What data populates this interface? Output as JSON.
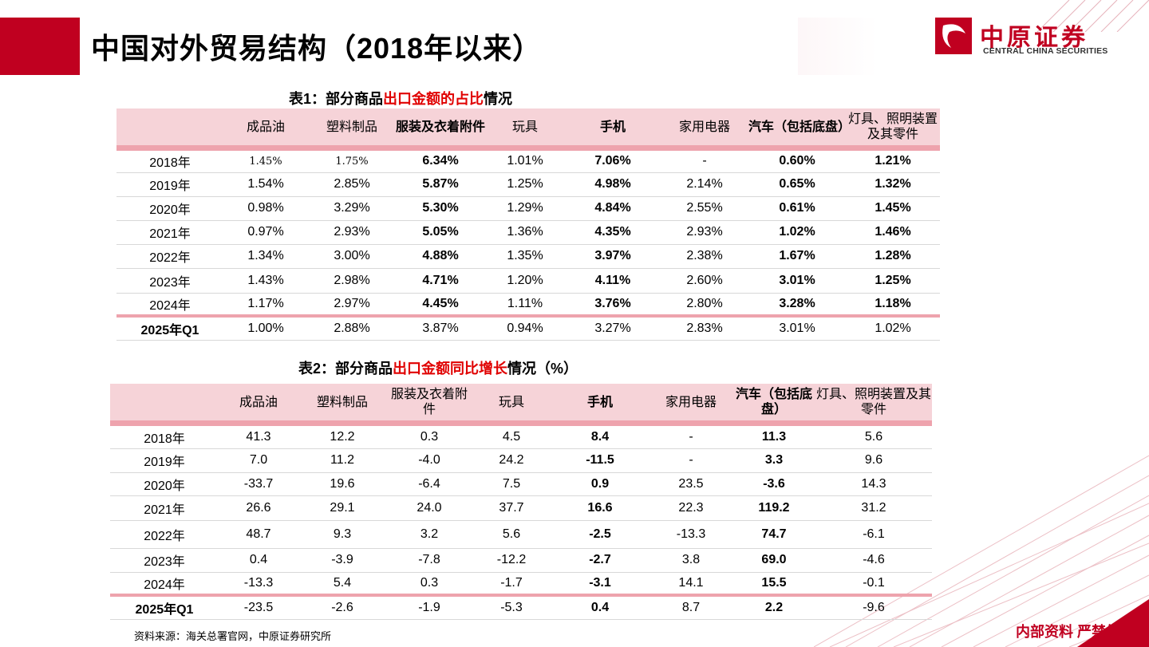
{
  "header": {
    "title": "中国对外贸易结构（2018年以来）",
    "logo_cn": "中原证券",
    "logo_en": "CENTRAL CHINA SECURITIES",
    "accent": "#c00020"
  },
  "table1": {
    "caption_prefix": "表1：部分商品",
    "caption_red": "出口金额的占比",
    "caption_suffix": "情况",
    "columns": [
      "",
      "成品油",
      "塑料制品",
      "服装及衣着附件",
      "玩具",
      "手机",
      "家用电器",
      "汽车（包括底盘）",
      "灯具、照明装置及其零件"
    ],
    "rows": [
      [
        "2018年",
        "1.45%",
        "1.75%",
        "6.34%",
        "1.01%",
        "7.06%",
        "-",
        "0.60%",
        "1.21%"
      ],
      [
        "2019年",
        "1.54%",
        "2.85%",
        "5.87%",
        "1.25%",
        "4.98%",
        "2.14%",
        "0.65%",
        "1.32%"
      ],
      [
        "2020年",
        "0.98%",
        "3.29%",
        "5.30%",
        "1.29%",
        "4.84%",
        "2.55%",
        "0.61%",
        "1.45%"
      ],
      [
        "2021年",
        "0.97%",
        "2.93%",
        "5.05%",
        "1.36%",
        "4.35%",
        "2.93%",
        "1.02%",
        "1.46%"
      ],
      [
        "2022年",
        "1.34%",
        "3.00%",
        "4.88%",
        "1.35%",
        "3.97%",
        "2.38%",
        "1.67%",
        "1.28%"
      ],
      [
        "2023年",
        "1.43%",
        "2.98%",
        "4.71%",
        "1.20%",
        "4.11%",
        "2.60%",
        "3.01%",
        "1.25%"
      ],
      [
        "2024年",
        "1.17%",
        "2.97%",
        "4.45%",
        "1.11%",
        "3.76%",
        "2.80%",
        "3.28%",
        "1.18%"
      ],
      [
        "2025年Q1",
        "1.00%",
        "2.88%",
        "3.87%",
        "0.94%",
        "3.27%",
        "2.83%",
        "3.01%",
        "1.02%"
      ]
    ]
  },
  "table2": {
    "caption_prefix": "表2：部分商品",
    "caption_red": "出口金额同比增长",
    "caption_suffix": "情况（%）",
    "columns": [
      "",
      "成品油",
      "塑料制品",
      "服装及衣着附件",
      "玩具",
      "手机",
      "家用电器",
      "汽车（包括底盘）",
      "灯具、照明装置及其零件"
    ],
    "rows": [
      [
        "2018年",
        "41.3",
        "12.2",
        "0.3",
        "4.5",
        "8.4",
        "-",
        "11.3",
        "5.6"
      ],
      [
        "2019年",
        "7.0",
        "11.2",
        "-4.0",
        "24.2",
        "-11.5",
        "-",
        "3.3",
        "9.6"
      ],
      [
        "2020年",
        "-33.7",
        "19.6",
        "-6.4",
        "7.5",
        "0.9",
        "23.5",
        "-3.6",
        "14.3"
      ],
      [
        "2021年",
        "26.6",
        "29.1",
        "24.0",
        "37.7",
        "16.6",
        "22.3",
        "119.2",
        "31.2"
      ],
      [
        "2022年",
        "48.7",
        "9.3",
        "3.2",
        "5.6",
        "-2.5",
        "-13.3",
        "74.7",
        "-6.1"
      ],
      [
        "2023年",
        "0.4",
        "-3.9",
        "-7.8",
        "-12.2",
        "-2.7",
        "3.8",
        "69.0",
        "-4.6"
      ],
      [
        "2024年",
        "-13.3",
        "5.4",
        "0.3",
        "-1.7",
        "-3.1",
        "14.1",
        "15.5",
        "-0.1"
      ],
      [
        "2025年Q1",
        "-23.5",
        "-2.6",
        "-1.9",
        "-5.3",
        "0.4",
        "8.7",
        "2.2",
        "-9.6"
      ]
    ]
  },
  "footer": {
    "source": "资料来源：海关总署官网，中原证券研究所",
    "stamp": "内部资料  严禁外传"
  }
}
